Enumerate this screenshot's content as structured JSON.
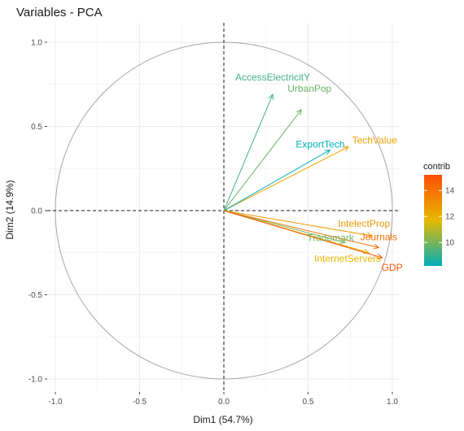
{
  "chart_data": {
    "type": "scatter",
    "title": "Variables - PCA",
    "xlabel": "Dim1 (54.7%)",
    "ylabel": "Dim2 (14.9%)",
    "xlim": [
      -1.0,
      1.0
    ],
    "ylim": [
      -1.0,
      1.0
    ],
    "xticks": [
      "-1.0",
      "-0.5",
      "0.0",
      "0.5",
      "1.0"
    ],
    "yticks": [
      "-1.0",
      "-0.5",
      "0.0",
      "0.5",
      "1.0"
    ],
    "grid": true,
    "correlation_circle": true,
    "reference_lines": [
      0,
      0
    ],
    "legend": {
      "title": "contrib",
      "ticks": [
        "10",
        "12",
        "14"
      ],
      "tick_values": [
        10,
        12,
        14
      ],
      "range": [
        8.2,
        15.2
      ],
      "placement": "right",
      "colors": [
        "#00AFBB",
        "#E7B800",
        "#FC4E07"
      ]
    },
    "variables": [
      {
        "label": "AccessElectricitY",
        "x": 0.29,
        "y": 0.69,
        "contrib": 9.2
      },
      {
        "label": "UrbanPop",
        "x": 0.46,
        "y": 0.6,
        "contrib": 9.8
      },
      {
        "label": "TechValue",
        "x": 0.74,
        "y": 0.38,
        "contrib": 12.4
      },
      {
        "label": "ExportTech",
        "x": 0.63,
        "y": 0.36,
        "contrib": 8.2
      },
      {
        "label": "IntelectProp",
        "x": 0.88,
        "y": -0.15,
        "contrib": 12.8
      },
      {
        "label": "Journals",
        "x": 0.92,
        "y": -0.22,
        "contrib": 14.0
      },
      {
        "label": "Trademark",
        "x": 0.72,
        "y": -0.19,
        "contrib": 10.0
      },
      {
        "label": "InternetServers",
        "x": 0.86,
        "y": -0.25,
        "contrib": 11.8
      },
      {
        "label": "GDP",
        "x": 0.94,
        "y": -0.28,
        "contrib": 15.0
      }
    ]
  }
}
